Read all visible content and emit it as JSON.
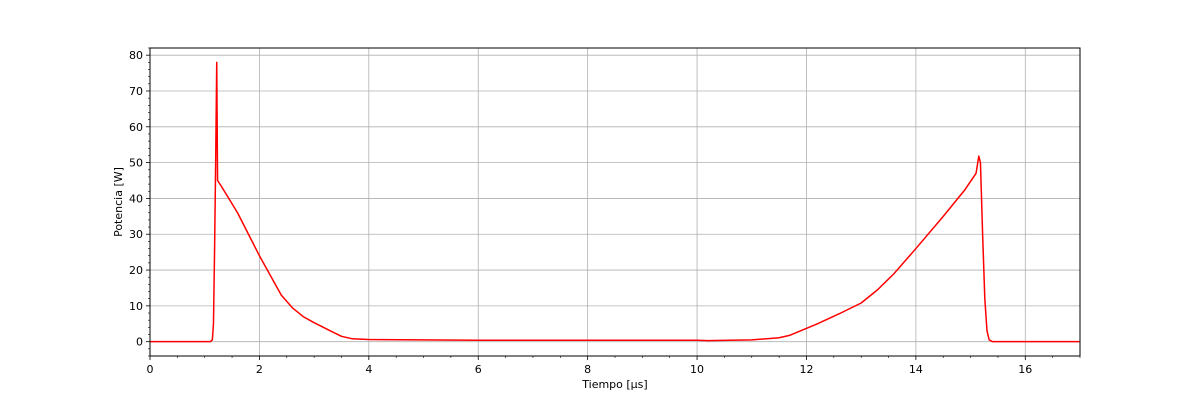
{
  "chart_data": {
    "type": "line",
    "xlabel": "Tiempo [μs]",
    "ylabel": "Potencia [W]",
    "xlim": [
      0,
      17
    ],
    "ylim": [
      -4,
      82
    ],
    "xticks": [
      0,
      2,
      4,
      6,
      8,
      10,
      12,
      14,
      16
    ],
    "yticks": [
      0,
      10,
      20,
      30,
      40,
      50,
      60,
      70,
      80
    ],
    "grid": true,
    "minor_ticks": true,
    "series": [
      {
        "color": "#ff0000",
        "points": [
          [
            0,
            0
          ],
          [
            1.1,
            0
          ],
          [
            1.14,
            0.5
          ],
          [
            1.16,
            5
          ],
          [
            1.18,
            25
          ],
          [
            1.2,
            50
          ],
          [
            1.22,
            78
          ],
          [
            1.235,
            45
          ],
          [
            1.3,
            43.5
          ],
          [
            1.6,
            36
          ],
          [
            2.0,
            24
          ],
          [
            2.4,
            13
          ],
          [
            2.6,
            9.5
          ],
          [
            2.8,
            7
          ],
          [
            3.0,
            5.3
          ],
          [
            3.3,
            3
          ],
          [
            3.5,
            1.5
          ],
          [
            3.7,
            0.8
          ],
          [
            4.0,
            0.6
          ],
          [
            6.0,
            0.4
          ],
          [
            8.0,
            0.4
          ],
          [
            10.0,
            0.4
          ],
          [
            10.2,
            0.3
          ],
          [
            11.0,
            0.5
          ],
          [
            11.5,
            1.1
          ],
          [
            11.7,
            1.8
          ],
          [
            12.2,
            5
          ],
          [
            12.6,
            7.8
          ],
          [
            13.0,
            10.8
          ],
          [
            13.3,
            14.5
          ],
          [
            13.6,
            19
          ],
          [
            14.0,
            26
          ],
          [
            14.5,
            35
          ],
          [
            14.9,
            42.5
          ],
          [
            15.1,
            47
          ],
          [
            15.15,
            51.8
          ],
          [
            15.18,
            50
          ],
          [
            15.22,
            30
          ],
          [
            15.26,
            12
          ],
          [
            15.3,
            3
          ],
          [
            15.34,
            0.5
          ],
          [
            15.4,
            0
          ],
          [
            17.0,
            0
          ]
        ]
      }
    ]
  }
}
